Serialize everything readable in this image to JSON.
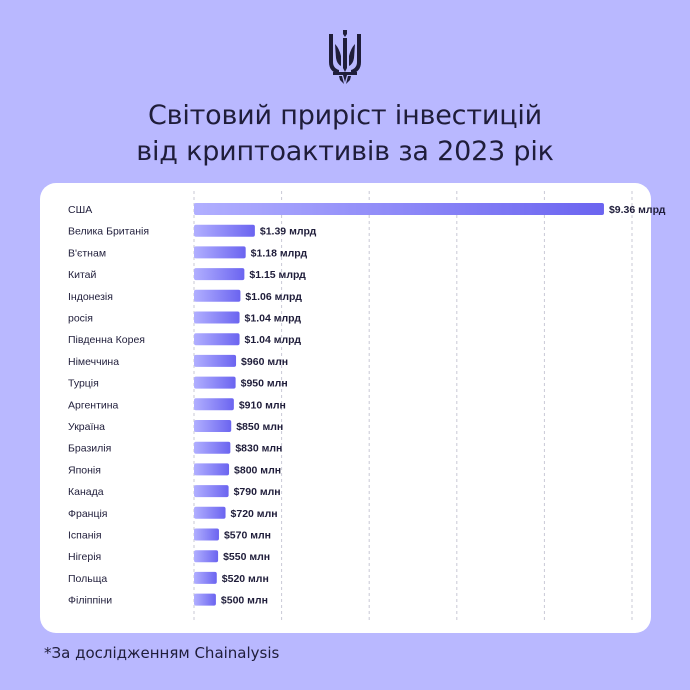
{
  "header": {
    "emblem": "trident-icon",
    "title_line1": "Світовий приріст інвестицій",
    "title_line2": "від криптоактивів за 2023 рік"
  },
  "footnote": "*За дослідженням Chainalysis",
  "colors": {
    "background": "#b9b8ff",
    "bar_start": "#b1afff",
    "bar_end": "#6b64f0",
    "card": "#ffffff",
    "text": "#1f1d3a",
    "grid": "#c9c9d6"
  },
  "chart_data": {
    "type": "bar",
    "orientation": "horizontal",
    "categories": [
      "США",
      "Велика Британія",
      "В'єтнам",
      "Китай",
      "Індонезія",
      "росія",
      "Південна Корея",
      "Німеччина",
      "Турція",
      "Аргентина",
      "Україна",
      "Бразилія",
      "Японія",
      "Канада",
      "Франція",
      "Іспанія",
      "Нігерія",
      "Польща",
      "Філіппіни"
    ],
    "values": [
      9.36,
      1.39,
      1.18,
      1.15,
      1.06,
      1.04,
      1.04,
      0.96,
      0.95,
      0.91,
      0.85,
      0.83,
      0.8,
      0.79,
      0.72,
      0.57,
      0.55,
      0.52,
      0.5
    ],
    "value_labels": [
      "$9.36 млрд",
      "$1.39 млрд",
      "$1.18 млрд",
      "$1.15 млрд",
      "$1.06 млрд",
      "$1.04 млрд",
      "$1.04 млрд",
      "$960 млн",
      "$950 млн",
      "$910 млн",
      "$850 млн",
      "$830 млн",
      "$800 млн",
      "$790 млн",
      "$720 млн",
      "$570 млн",
      "$550 млн",
      "$520 млн",
      "$500 млн"
    ],
    "xlim": [
      0,
      10
    ],
    "grid": true,
    "gridlines": 5
  }
}
